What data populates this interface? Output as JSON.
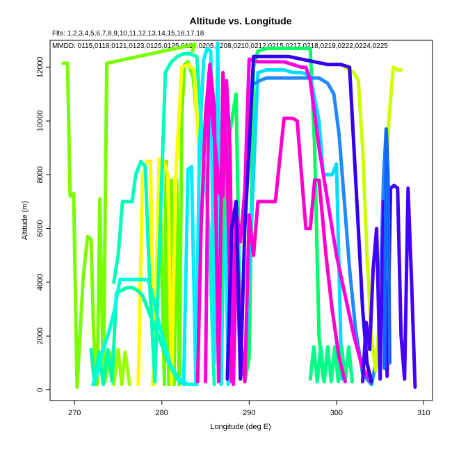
{
  "chart_data": {
    "type": "line",
    "title": "Altitude vs. Longitude",
    "notes": [
      "Flts: 1,2,3,4,5,6,7,8,9,10,11,12,13,14,15,16,17,18",
      "MMDD: 0115,0118,0121,0123,0125,0125,0130,0205,0208,0210,0212,0215,0217,0218,0219,0222,0224,0225"
    ],
    "xlabel": "Longitude (deg E)",
    "ylabel": "Altitude (m)",
    "xlim": [
      267.2,
      311.0
    ],
    "ylim": [
      -400,
      13000
    ],
    "xticks": [
      270,
      280,
      290,
      300,
      310
    ],
    "yticks": [
      0,
      2000,
      4000,
      6000,
      8000,
      10000,
      12000
    ],
    "grid": false,
    "series": [
      {
        "color": "#7CFC00",
        "x": [
          268.7,
          269.2,
          269.5,
          269.9,
          270.3,
          271.0,
          271.5,
          271.9,
          272.2,
          272.6,
          272.9,
          273.3,
          273.7,
          283.8,
          283.5
        ],
        "y": [
          12150,
          12150,
          7200,
          7300,
          100,
          4200,
          5700,
          5600,
          2000,
          200,
          7100,
          300,
          12150,
          12850,
          12600
        ]
      },
      {
        "color": "#99FF00",
        "x": [
          273.5,
          274.1,
          274.5,
          275.0,
          275.4,
          275.8,
          276.3
        ],
        "y": [
          300,
          1400,
          200,
          1500,
          200,
          1400,
          200
        ]
      },
      {
        "color": "#66FF00",
        "x": [
          279.0,
          279.8,
          280.3,
          280.5,
          280.8,
          281.1,
          281.4,
          281.7,
          282.0,
          282.3,
          282.6,
          283.0,
          283.6,
          284.2,
          284.8
        ],
        "y": [
          200,
          7500,
          200,
          8500,
          200,
          7800,
          200,
          7800,
          200,
          10300,
          12100,
          12200,
          11600,
          9500,
          8000
        ]
      },
      {
        "color": "#FFFF00",
        "x": [
          277.3,
          277.8,
          278.3,
          278.7,
          279.1,
          279.7,
          280.2,
          280.7,
          281.1,
          281.6,
          282.3,
          283.0,
          283.7,
          284.4
        ],
        "y": [
          200,
          8000,
          8500,
          8500,
          200,
          8600,
          8500,
          8000,
          200,
          8000,
          12000,
          12100,
          11900,
          8000
        ]
      },
      {
        "color": "#00FFAA",
        "x": [
          271.9,
          272.3,
          272.8,
          273.3,
          273.8,
          274.3,
          274.8,
          275.4,
          276.0,
          276.6,
          277.2,
          277.8,
          278.4,
          279.0,
          279.6,
          280.2,
          280.8,
          281.4,
          282.0,
          282.6
        ],
        "y": [
          1500,
          200,
          1400,
          200,
          1500,
          300,
          3600,
          3700,
          3800,
          3800,
          3700,
          3500,
          3000,
          2500,
          2000,
          1500,
          1000,
          600,
          300,
          200
        ]
      },
      {
        "color": "#00FFDD",
        "x": [
          272.1,
          272.6,
          273.2,
          273.9,
          274.6,
          275.2,
          275.6,
          276.2,
          276.9,
          277.5,
          278.0,
          278.4,
          278.8,
          279.3,
          279.8,
          280.4,
          281.0,
          282.0,
          283.0,
          284.0
        ],
        "y": [
          200,
          600,
          1400,
          2100,
          3000,
          4100,
          4100,
          4100,
          4100,
          4100,
          4100,
          4100,
          3700,
          3000,
          2300,
          1600,
          900,
          400,
          200,
          200
        ]
      },
      {
        "color": "#00FFBB",
        "x": [
          274.5,
          275.0,
          275.5,
          276.1,
          276.6,
          277.0,
          277.6,
          278.1,
          278.6,
          279.2,
          279.8,
          280.4,
          281.1,
          281.8,
          282.5,
          283.2,
          284.0,
          284.7,
          285.4,
          286.0
        ],
        "y": [
          4000,
          5000,
          7000,
          7000,
          7000,
          8000,
          8500,
          8300,
          4000,
          300,
          6000,
          11800,
          12200,
          12400,
          12500,
          12500,
          12400,
          9000,
          6000,
          200
        ]
      },
      {
        "color": "#00EEFF",
        "x": [
          282.5,
          283.0,
          283.4,
          283.9,
          284.3,
          284.8,
          285.2,
          285.6,
          286.0,
          286.4,
          286.8,
          287.2,
          287.6
        ],
        "y": [
          200,
          8200,
          8300,
          200,
          9000,
          12300,
          12700,
          12600,
          1000,
          12900,
          200,
          8500,
          200
        ]
      },
      {
        "color": "#00FF66",
        "x": [
          286.5,
          287.0,
          287.5,
          288.0,
          288.5,
          289.0,
          289.5,
          290.0,
          290.5,
          291.0,
          292.0,
          293.0,
          294.0,
          295.0,
          296.0,
          297.0,
          297.5,
          298.0,
          298.5
        ],
        "y": [
          300,
          6000,
          9000,
          10000,
          11000,
          2000,
          300,
          1200,
          12000,
          12600,
          12700,
          12700,
          12700,
          12700,
          12700,
          12700,
          9000,
          2000,
          400
        ]
      },
      {
        "color": "#00DDFF",
        "x": [
          289.5,
          290.0,
          290.5,
          291.0,
          292.0,
          293.0,
          294.0,
          295.0,
          296.0,
          297.0,
          298.0,
          298.5,
          299.0,
          299.5,
          300.0,
          300.6
        ],
        "y": [
          500,
          4000,
          8000,
          11800,
          11900,
          11900,
          11900,
          11800,
          11800,
          11700,
          10000,
          8000,
          8000,
          8000,
          8400,
          400
        ]
      },
      {
        "color": "#2288FF",
        "x": [
          290.7,
          291.2,
          292.0,
          293.0,
          294.0,
          295.0,
          296.0,
          297.0,
          298.0,
          299.0,
          299.7,
          300.3,
          300.9,
          301.5,
          302.2,
          303.0,
          304.0,
          304.8,
          305.4,
          305.7
        ],
        "y": [
          11400,
          11500,
          11600,
          11600,
          11600,
          11600,
          11600,
          11600,
          11600,
          11400,
          11000,
          9500,
          7000,
          4500,
          2200,
          600,
          200,
          1400,
          8000,
          9700
        ]
      },
      {
        "color": "#CCFF00",
        "x": [
          301.0,
          301.5,
          302.0,
          302.5,
          303.0,
          303.5,
          304.0,
          304.5,
          305.0,
          305.5,
          306.0,
          306.5,
          307.0,
          307.4
        ],
        "y": [
          12000,
          11900,
          11800,
          11500,
          9000,
          5000,
          2000,
          700,
          3000,
          6000,
          10000,
          12000,
          11900,
          11900
        ]
      },
      {
        "color": "#00FF88",
        "x": [
          297.0,
          297.4,
          297.8,
          298.2,
          298.6,
          299.0,
          299.4,
          299.8,
          300.2,
          300.6,
          301.0,
          301.4,
          301.8
        ],
        "y": [
          400,
          1600,
          300,
          1600,
          300,
          1600,
          300,
          1600,
          300,
          1600,
          300,
          1600,
          300
        ]
      },
      {
        "color": "#FF00CC",
        "x": [
          284.1,
          284.5,
          285.0,
          285.5,
          286.0,
          286.5,
          287.0,
          287.5,
          288.0,
          288.5,
          289.0,
          289.5,
          290.0,
          290.5,
          291.0,
          292.0,
          293.0,
          294.0,
          295.0,
          295.5,
          296.0,
          296.5,
          297.0,
          297.5,
          298.0,
          298.8,
          299.5,
          300.3,
          301.0
        ],
        "y": [
          300,
          6000,
          10200,
          12100,
          10500,
          300,
          11800,
          8000,
          300,
          7000,
          2000,
          300,
          6500,
          5000,
          7000,
          7000,
          7000,
          10100,
          10100,
          10000,
          8000,
          6000,
          6000,
          7800,
          7800,
          5000,
          3000,
          1200,
          300
        ]
      },
      {
        "color": "#FF00DD",
        "x": [
          285.0,
          285.4,
          285.8,
          286.2,
          286.6,
          287.0,
          287.4,
          287.8,
          288.2,
          288.6,
          289.0,
          289.5,
          290.0,
          291.0,
          292.0,
          293.0,
          294.0,
          295.0,
          296.0,
          296.5,
          297.0,
          298.0,
          299.0,
          300.0,
          301.0,
          302.0,
          303.0,
          304.0
        ],
        "y": [
          300,
          11800,
          10000,
          8800,
          7300,
          7200,
          11500,
          9000,
          200,
          6500,
          5500,
          7400,
          12300,
          12200,
          12200,
          12200,
          12200,
          12100,
          12000,
          12000,
          11500,
          9000,
          7000,
          5000,
          3500,
          2000,
          800,
          300
        ]
      },
      {
        "color": "#3300EE",
        "x": [
          287.5,
          288.0,
          288.5,
          289.0,
          289.5,
          290.0,
          290.5,
          291.5,
          293.0,
          294.5,
          296.0,
          297.5,
          299.0,
          300.5,
          301.5,
          302.0,
          302.5,
          303.0,
          303.5,
          304.0
        ],
        "y": [
          400,
          6000,
          7000,
          400,
          6000,
          9000,
          12400,
          12400,
          12400,
          12400,
          12300,
          12200,
          12100,
          12100,
          12000,
          9000,
          6000,
          3000,
          1000,
          300
        ]
      },
      {
        "color": "#4400FF",
        "x": [
          303.0,
          303.4,
          303.8,
          304.2,
          304.6,
          305.0,
          305.4,
          305.8,
          306.2,
          306.6,
          307.0,
          307.4,
          307.8,
          308.2,
          308.6,
          309.0
        ],
        "y": [
          300,
          2500,
          1500,
          4500,
          6000,
          400,
          7000,
          500,
          7500,
          7600,
          7500,
          2000,
          400,
          7500,
          4000,
          100
        ]
      },
      {
        "color": "#1166FF",
        "x": [
          305.5,
          305.7,
          305.9,
          306.1
        ],
        "y": [
          800,
          9700,
          8000,
          1000
        ]
      }
    ]
  }
}
